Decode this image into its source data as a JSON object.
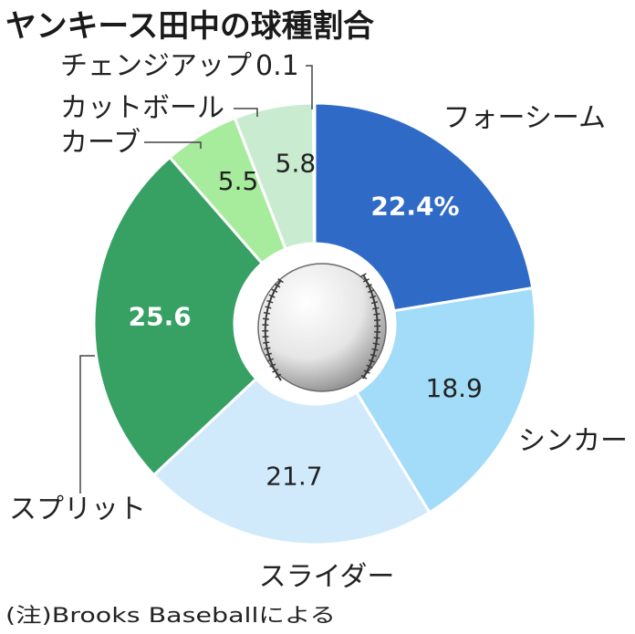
{
  "chart_data": {
    "type": "pie",
    "title": "ヤンキース田中の球種割合",
    "unit": "%",
    "note": "(注)Brooks Baseballによる",
    "slices": [
      {
        "label": "フォーシーム",
        "value": 22.4,
        "value_text": "22.4%",
        "color": "#2f6bc6",
        "value_color": "#ffffff",
        "value_bold": true
      },
      {
        "label": "シンカー",
        "value": 18.9,
        "value_text": "18.9",
        "color": "#a3dcf8",
        "value_color": "#222222",
        "value_bold": false
      },
      {
        "label": "スライダー",
        "value": 21.7,
        "value_text": "21.7",
        "color": "#d1eafb",
        "value_color": "#222222",
        "value_bold": false
      },
      {
        "label": "スプリット",
        "value": 25.6,
        "value_text": "25.6",
        "color": "#37a063",
        "value_color": "#ffffff",
        "value_bold": true
      },
      {
        "label": "カーブ",
        "value": 5.5,
        "value_text": "5.5",
        "color": "#a6ec9c",
        "value_color": "#222222",
        "value_bold": false
      },
      {
        "label": "カットボール",
        "value": 5.8,
        "value_text": "5.8",
        "color": "#c9ecd0",
        "value_color": "#222222",
        "value_bold": false
      },
      {
        "label": "チェンジアップ",
        "value": 0.1,
        "value_text": "0.1",
        "color": "#6c7a70",
        "value_color": "#222222",
        "value_bold": false
      }
    ]
  }
}
